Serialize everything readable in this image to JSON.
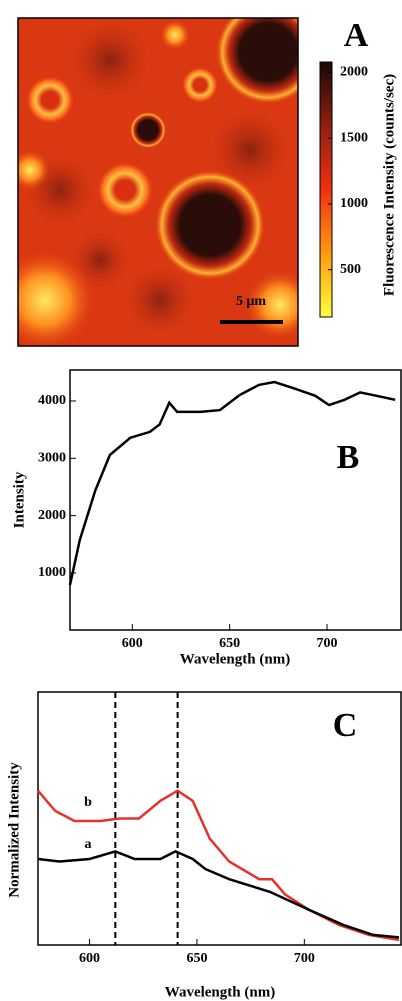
{
  "chart_data": [
    {
      "type": "image",
      "panel": "A",
      "colorbar_label": "Fluorescence Intensity (counts/sec)",
      "clim": [
        140,
        2080
      ],
      "cticks": [
        500,
        1000,
        1500,
        2000
      ],
      "scale_bar": "5 μm"
    },
    {
      "type": "line",
      "panel": "B",
      "xlabel": "Wavelength (nm)",
      "ylabel": "Intensity",
      "xlim": [
        568,
        738
      ],
      "xticks": [
        600,
        650,
        700
      ],
      "ylim": [
        5,
        4540
      ],
      "yticks": [
        1000,
        2000,
        3000,
        4000
      ],
      "series": [
        {
          "color": "#000000",
          "x": [
            568,
            573,
            581,
            588.5,
            599,
            609,
            614,
            619,
            623,
            635,
            645,
            655,
            665,
            673,
            683,
            694,
            701,
            709,
            717,
            724,
            735
          ],
          "values": [
            790,
            1570,
            2440,
            3060,
            3360,
            3460,
            3590,
            3970,
            3810,
            3810,
            3840,
            4100,
            4280,
            4330,
            4220,
            4090,
            3930,
            4020,
            4150,
            4100,
            4020
          ]
        }
      ]
    },
    {
      "type": "line",
      "panel": "C",
      "xlabel": "Wavelength (nm)",
      "ylabel": "Normalized Intensity",
      "xlim": [
        576,
        745
      ],
      "xticks": [
        600,
        650,
        700
      ],
      "ylim": [
        0,
        1
      ],
      "vlines": [
        612,
        641
      ],
      "series": [
        {
          "name": "b",
          "color": "#e8312a",
          "x": [
            576,
            584,
            593,
            605,
            614,
            623,
            633,
            641,
            648,
            656,
            665,
            679,
            685,
            691,
            702,
            716,
            730,
            744
          ],
          "values": [
            0.61,
            0.53,
            0.49,
            0.49,
            0.5,
            0.5,
            0.57,
            0.61,
            0.57,
            0.42,
            0.33,
            0.26,
            0.26,
            0.2,
            0.14,
            0.08,
            0.04,
            0.02
          ]
        },
        {
          "name": "a",
          "color": "#000000",
          "x": [
            576,
            586,
            600,
            612,
            621,
            633,
            640,
            648,
            654,
            665,
            684,
            702,
            718,
            732,
            744
          ],
          "values": [
            0.34,
            0.33,
            0.34,
            0.37,
            0.34,
            0.34,
            0.37,
            0.34,
            0.3,
            0.26,
            0.21,
            0.14,
            0.08,
            0.04,
            0.03
          ]
        }
      ]
    }
  ]
}
